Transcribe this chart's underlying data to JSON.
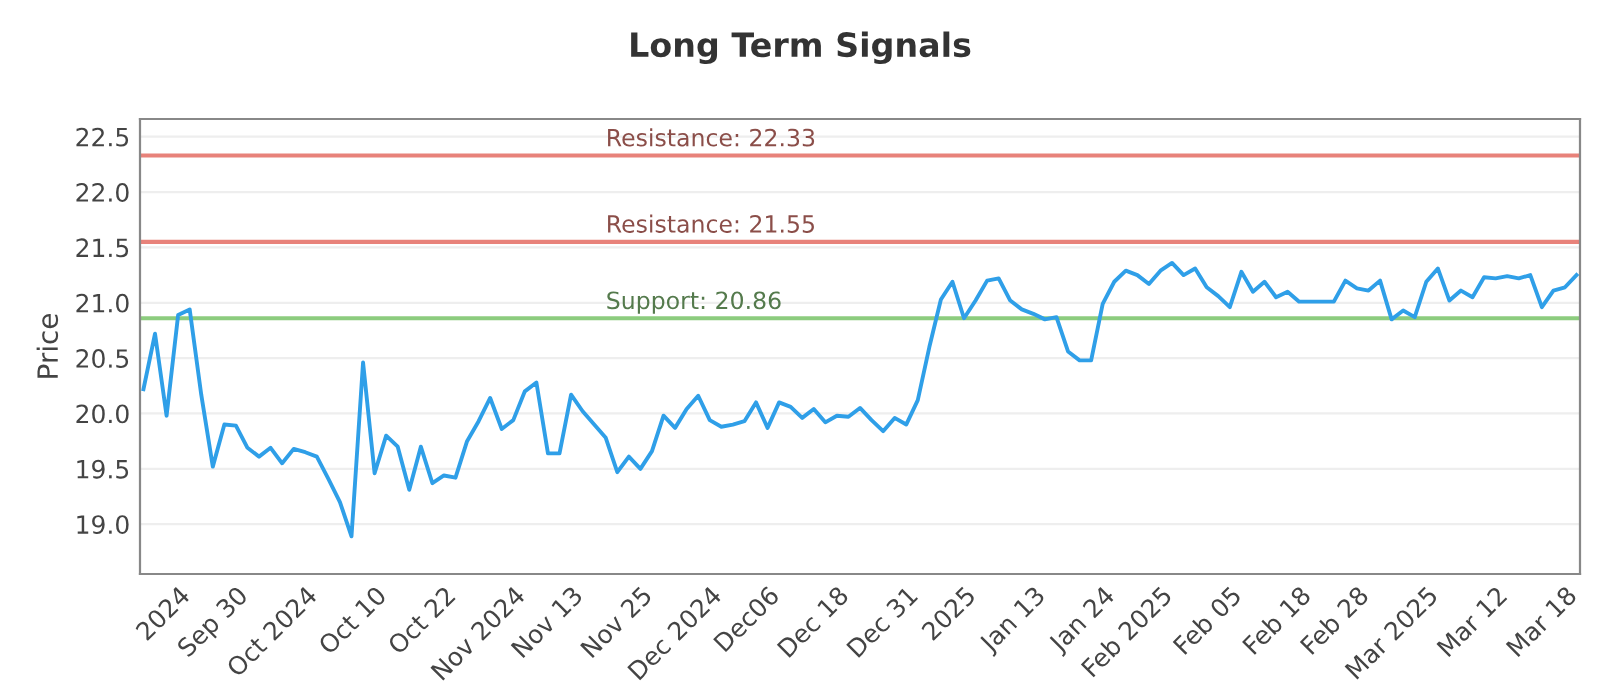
{
  "chart_data": {
    "type": "line",
    "title": "Long Term Signals",
    "ylabel": "Price",
    "categories": [
      null,
      null,
      null,
      "2024",
      null,
      null,
      null,
      null,
      "Sep 30",
      null,
      null,
      null,
      null,
      null,
      "Oct 2024",
      null,
      null,
      null,
      null,
      null,
      "Oct 10",
      null,
      null,
      null,
      null,
      null,
      "Oct 22",
      null,
      null,
      null,
      null,
      null,
      "Nov 2024",
      null,
      null,
      null,
      null,
      "Nov 13",
      null,
      null,
      null,
      null,
      null,
      "Nov 25",
      null,
      null,
      null,
      null,
      null,
      "Dec 2024",
      null,
      null,
      null,
      null,
      "Dec06",
      null,
      null,
      null,
      null,
      null,
      "Dec 18",
      null,
      null,
      null,
      null,
      null,
      "Dec 31",
      null,
      null,
      null,
      null,
      "2025",
      null,
      null,
      null,
      null,
      null,
      "Jan 13",
      null,
      null,
      null,
      null,
      null,
      "Jan 24",
      null,
      null,
      null,
      null,
      "Feb 2025",
      null,
      null,
      null,
      null,
      null,
      "Feb 05",
      null,
      null,
      null,
      null,
      null,
      "Feb 18",
      null,
      null,
      null,
      null,
      "Feb 28",
      null,
      null,
      null,
      null,
      null,
      "Mar 2025",
      null,
      null,
      null,
      null,
      null,
      "Mar 12",
      null,
      null,
      null,
      null,
      null,
      "Mar 18",
      null
    ],
    "series": [
      {
        "color": "#2f9fe8",
        "values": [
          20.22,
          20.72,
          19.98,
          20.89,
          20.94,
          20.17,
          19.52,
          19.9,
          19.89,
          19.69,
          19.61,
          19.69,
          19.55,
          19.68,
          19.65,
          19.61,
          19.41,
          19.2,
          18.89,
          20.46,
          19.46,
          19.8,
          19.7,
          19.31,
          19.7,
          19.37,
          19.44,
          19.42,
          19.75,
          19.93,
          20.14,
          19.86,
          19.94,
          20.2,
          20.28,
          19.64,
          19.64,
          20.17,
          20.02,
          19.9,
          19.78,
          19.47,
          19.61,
          19.5,
          19.66,
          19.98,
          19.87,
          20.04,
          20.16,
          19.94,
          19.88,
          19.9,
          19.93,
          20.1,
          19.87,
          20.1,
          20.06,
          19.96,
          20.04,
          19.92,
          19.98,
          19.97,
          20.05,
          19.94,
          19.84,
          19.96,
          19.9,
          20.12,
          20.6,
          21.03,
          21.19,
          20.86,
          21.02,
          21.2,
          21.22,
          21.02,
          20.94,
          20.9,
          20.85,
          20.87,
          20.56,
          20.48,
          20.48,
          20.99,
          21.19,
          21.29,
          21.25,
          21.17,
          21.29,
          21.36,
          21.25,
          21.31,
          21.14,
          21.06,
          20.96,
          21.28,
          21.1,
          21.19,
          21.05,
          21.1,
          21.01,
          21.01,
          21.01,
          21.01,
          21.2,
          21.13,
          21.11,
          21.2,
          20.85,
          20.93,
          20.87,
          21.19,
          21.31,
          21.02,
          21.11,
          21.05,
          21.23,
          21.22,
          21.24,
          21.22,
          21.25,
          20.96,
          21.11,
          21.14,
          21.25
        ]
      }
    ],
    "ylim": [
      18.55,
      22.66
    ],
    "yticks": [
      {
        "value": 19,
        "label": "19.0"
      },
      19.5,
      {
        "value": 20,
        "label": "20.0"
      },
      20.5,
      {
        "value": 21,
        "label": "21.0"
      },
      21.5,
      {
        "value": 22,
        "label": "22.0"
      },
      22.5
    ],
    "ref_lines": [
      {
        "axis": "y",
        "value": 22.33,
        "label": "Resistance: 22.33",
        "color": "#e8827a"
      },
      {
        "axis": "y",
        "value": 21.55,
        "label": "Resistance: 21.55",
        "color": "#e8827a"
      },
      {
        "axis": "y",
        "value": 20.86,
        "label": "Support: 20.86",
        "color": "#8ccc7e"
      }
    ],
    "grid": "y",
    "legend": false,
    "marker": "none",
    "line_style": "solid"
  }
}
